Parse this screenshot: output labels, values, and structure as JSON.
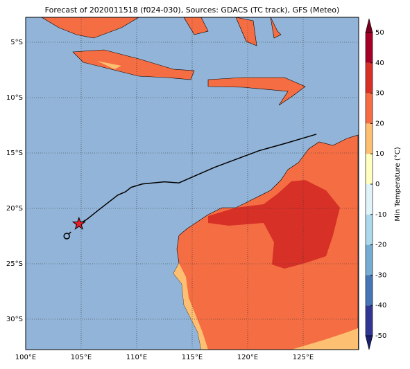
{
  "chart_data": {
    "type": "map",
    "title": "Forecast of 2020011518 (f024-030), Sources: GDACS (TC track), GFS (Meteo)",
    "xlim": [
      100,
      130
    ],
    "ylim": [
      -32.75,
      -2.75
    ],
    "xticks": [
      {
        "value": 100,
        "label": "100°E"
      },
      {
        "value": 105,
        "label": "105°E"
      },
      {
        "value": 110,
        "label": "110°E"
      },
      {
        "value": 115,
        "label": "115°E"
      },
      {
        "value": 120,
        "label": "120°E"
      },
      {
        "value": 125,
        "label": "125°E"
      }
    ],
    "yticks": [
      {
        "value": -5,
        "label": "5°S"
      },
      {
        "value": -10,
        "label": "10°S"
      },
      {
        "value": -15,
        "label": "15°S"
      },
      {
        "value": -20,
        "label": "20°S"
      },
      {
        "value": -25,
        "label": "25°S"
      },
      {
        "value": -30,
        "label": "30°S"
      }
    ],
    "grid": true,
    "track": {
      "color": "#000000",
      "lon": [
        104.8,
        105.5,
        106.5,
        108.3,
        109.0,
        109.5,
        110.5,
        112.5,
        113.8,
        117.0,
        121.0,
        123.5,
        126.2
      ],
      "lat": [
        -21.4,
        -21.0,
        -20.2,
        -18.8,
        -18.5,
        -18.1,
        -17.8,
        -17.6,
        -17.7,
        -16.3,
        -14.8,
        -14.1,
        -13.3
      ]
    },
    "current_position": {
      "lon": 104.8,
      "lat": -21.4,
      "color": "#e8202a"
    },
    "start_position": {
      "lon": 103.7,
      "lat": -22.5
    },
    "colorbar": {
      "label": "Min Temperature (°C)",
      "levels": [
        -50,
        -40,
        -30,
        -20,
        -10,
        0,
        10,
        20,
        30,
        40,
        50
      ],
      "colors": [
        "#313695",
        "#4575b4",
        "#74add1",
        "#abd9e9",
        "#e0f3f8",
        "#ffffbf",
        "#fdbf71",
        "#f46d43",
        "#d73027",
        "#a50026"
      ],
      "under": "#1c1f6e",
      "over": "#7a0020",
      "ticks": [
        50,
        40,
        30,
        20,
        10,
        0,
        -10,
        -20,
        -30,
        -40,
        -50
      ]
    }
  }
}
